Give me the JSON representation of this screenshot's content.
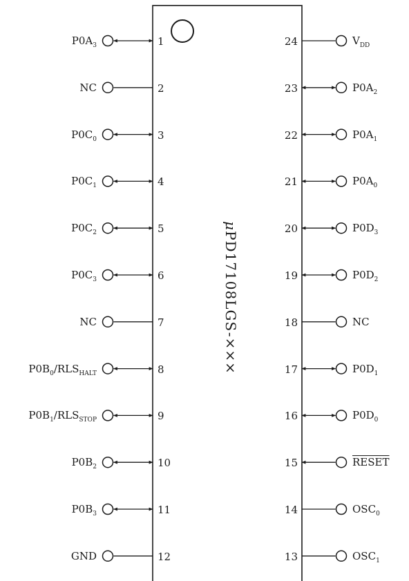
{
  "chip": {
    "name_prefix": "μ",
    "name": "PD17108LGS-×××"
  },
  "pins_left": [
    {
      "num": "1",
      "label": "P0A",
      "sub": "3",
      "suffix": "",
      "suffix_sub": "",
      "dir": "bi"
    },
    {
      "num": "2",
      "label": "NC",
      "sub": "",
      "suffix": "",
      "suffix_sub": "",
      "dir": "none"
    },
    {
      "num": "3",
      "label": "P0C",
      "sub": "0",
      "suffix": "",
      "suffix_sub": "",
      "dir": "bi"
    },
    {
      "num": "4",
      "label": "P0C",
      "sub": "1",
      "suffix": "",
      "suffix_sub": "",
      "dir": "bi"
    },
    {
      "num": "5",
      "label": "P0C",
      "sub": "2",
      "suffix": "",
      "suffix_sub": "",
      "dir": "bi"
    },
    {
      "num": "6",
      "label": "P0C",
      "sub": "3",
      "suffix": "",
      "suffix_sub": "",
      "dir": "bi"
    },
    {
      "num": "7",
      "label": "NC",
      "sub": "",
      "suffix": "",
      "suffix_sub": "",
      "dir": "none"
    },
    {
      "num": "8",
      "label": "P0B",
      "sub": "0",
      "suffix": "/RLS",
      "suffix_sub": "HALT",
      "dir": "bi"
    },
    {
      "num": "9",
      "label": "P0B",
      "sub": "1",
      "suffix": "/RLS",
      "suffix_sub": "STOP",
      "dir": "bi"
    },
    {
      "num": "10",
      "label": "P0B",
      "sub": "2",
      "suffix": "",
      "suffix_sub": "",
      "dir": "bi"
    },
    {
      "num": "11",
      "label": "P0B",
      "sub": "3",
      "suffix": "",
      "suffix_sub": "",
      "dir": "bi"
    },
    {
      "num": "12",
      "label": "GND",
      "sub": "",
      "suffix": "",
      "suffix_sub": "",
      "dir": "none"
    }
  ],
  "pins_right": [
    {
      "num": "24",
      "label": "V",
      "sub": "DD",
      "overline": false,
      "dir": "none"
    },
    {
      "num": "23",
      "label": "P0A",
      "sub": "2",
      "overline": false,
      "dir": "bi"
    },
    {
      "num": "22",
      "label": "P0A",
      "sub": "1",
      "overline": false,
      "dir": "bi"
    },
    {
      "num": "21",
      "label": "P0A",
      "sub": "0",
      "overline": false,
      "dir": "bi"
    },
    {
      "num": "20",
      "label": "P0D",
      "sub": "3",
      "overline": false,
      "dir": "bi"
    },
    {
      "num": "19",
      "label": "P0D",
      "sub": "2",
      "overline": false,
      "dir": "bi"
    },
    {
      "num": "18",
      "label": "NC",
      "sub": "",
      "overline": false,
      "dir": "none"
    },
    {
      "num": "17",
      "label": "P0D",
      "sub": "1",
      "overline": false,
      "dir": "bi"
    },
    {
      "num": "16",
      "label": "P0D",
      "sub": "0",
      "overline": false,
      "dir": "bi"
    },
    {
      "num": "15",
      "label": "RESET",
      "sub": "",
      "overline": true,
      "dir": "in"
    },
    {
      "num": "14",
      "label": "OSC",
      "sub": "0",
      "overline": false,
      "dir": "none"
    },
    {
      "num": "13",
      "label": "OSC",
      "sub": "1",
      "overline": false,
      "dir": "none"
    }
  ]
}
